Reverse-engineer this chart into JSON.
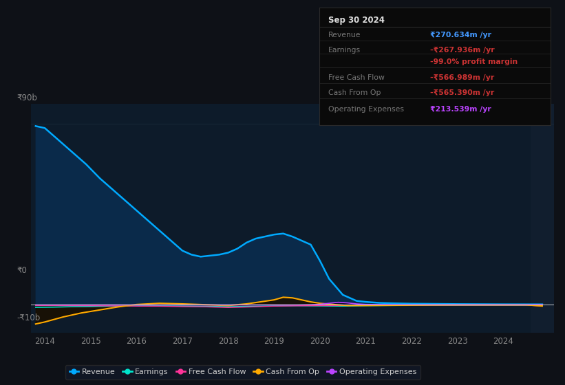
{
  "bg_color": "#0e1117",
  "plot_bg_color": "#0d1b2a",
  "grid_color": "#1e2d3d",
  "legend": [
    "Revenue",
    "Earnings",
    "Free Cash Flow",
    "Cash From Op",
    "Operating Expenses"
  ],
  "legend_colors": [
    "#00aaff",
    "#00e5cc",
    "#ff3399",
    "#ffaa00",
    "#bb44ff"
  ],
  "info_box": {
    "title": "Sep 30 2024",
    "rows": [
      {
        "label": "Revenue",
        "value": "₹270.634m /yr",
        "value_color": "#4499ff"
      },
      {
        "label": "Earnings",
        "value": "-₹267.936m /yr",
        "value_color": "#cc3333"
      },
      {
        "label": "",
        "value": "-99.0% profit margin",
        "value_color": "#cc3333"
      },
      {
        "label": "Free Cash Flow",
        "value": "-₹566.989m /yr",
        "value_color": "#cc3333"
      },
      {
        "label": "Cash From Op",
        "value": "-₹565.390m /yr",
        "value_color": "#cc3333"
      },
      {
        "label": "Operating Expenses",
        "value": "₹213.539m /yr",
        "value_color": "#bb44ff"
      }
    ]
  },
  "xmin": 2013.7,
  "xmax": 2025.1,
  "ymin": -14000000000,
  "ymax": 100000000000,
  "revenue_x": [
    2013.8,
    2014.0,
    2014.3,
    2014.6,
    2014.9,
    2015.2,
    2015.5,
    2015.8,
    2016.1,
    2016.4,
    2016.7,
    2017.0,
    2017.2,
    2017.4,
    2017.6,
    2017.8,
    2018.0,
    2018.2,
    2018.4,
    2018.6,
    2018.8,
    2019.0,
    2019.2,
    2019.4,
    2019.6,
    2019.8,
    2020.0,
    2020.2,
    2020.5,
    2020.8,
    2021.0,
    2021.3,
    2021.6,
    2022.0,
    2022.5,
    2023.0,
    2023.5,
    2024.0,
    2024.5,
    2024.85
  ],
  "revenue_y": [
    89000000000.0,
    88000000000.0,
    82000000000.0,
    76000000000.0,
    70000000000.0,
    63000000000.0,
    57000000000.0,
    51000000000.0,
    45000000000.0,
    39000000000.0,
    33000000000.0,
    27000000000.0,
    25000000000.0,
    24000000000.0,
    24500000000.0,
    25000000000.0,
    26000000000.0,
    28000000000.0,
    31000000000.0,
    33000000000.0,
    34000000000.0,
    35000000000.0,
    35500000000.0,
    34000000000.0,
    32000000000.0,
    30000000000.0,
    22000000000.0,
    13000000000.0,
    5000000000.0,
    2000000000.0,
    1500000000.0,
    1000000000.0,
    800000000.0,
    600000000.0,
    500000000.0,
    400000000.0,
    350000000.0,
    300000000.0,
    280000000.0,
    270000000.0
  ],
  "revenue_color": "#00aaff",
  "revenue_fill": "#0a2a4a",
  "earnings_x": [
    2013.8,
    2014.2,
    2014.6,
    2015.0,
    2015.5,
    2016.0,
    2016.5,
    2017.0,
    2017.5,
    2018.0,
    2018.5,
    2019.0,
    2019.5,
    2020.0,
    2020.5,
    2021.0,
    2021.5,
    2022.0,
    2022.5,
    2023.0,
    2023.5,
    2024.0,
    2024.5,
    2024.85
  ],
  "earnings_y": [
    -1200000000.0,
    -1100000000.0,
    -900000000.0,
    -800000000.0,
    -600000000.0,
    -500000000.0,
    -500000000.0,
    -600000000.0,
    -700000000.0,
    -900000000.0,
    -700000000.0,
    -500000000.0,
    -400000000.0,
    -500000000.0,
    -600000000.0,
    -400000000.0,
    -300000000.0,
    -250000000.0,
    -250000000.0,
    -250000000.0,
    -250000000.0,
    -250000000.0,
    -260000000.0,
    -270000000.0
  ],
  "earnings_color": "#00e5cc",
  "fcf_x": [
    2013.8,
    2014.2,
    2014.6,
    2015.0,
    2015.5,
    2016.0,
    2016.5,
    2017.0,
    2017.5,
    2018.0,
    2018.5,
    2019.0,
    2019.5,
    2020.0,
    2020.5,
    2021.0,
    2021.5,
    2022.0,
    2022.5,
    2023.0,
    2023.5,
    2024.0,
    2024.5,
    2024.85
  ],
  "fcf_y": [
    -300000000.0,
    -300000000.0,
    -350000000.0,
    -400000000.0,
    -500000000.0,
    -600000000.0,
    -650000000.0,
    -850000000.0,
    -950000000.0,
    -1300000000.0,
    -1000000000.0,
    -600000000.0,
    -450000000.0,
    -350000000.0,
    -300000000.0,
    -220000000.0,
    -180000000.0,
    -150000000.0,
    -150000000.0,
    -140000000.0,
    -140000000.0,
    -140000000.0,
    -140000000.0,
    -570000000.0
  ],
  "fcf_color": "#ff3399",
  "cfo_x": [
    2013.8,
    2014.0,
    2014.4,
    2014.8,
    2015.2,
    2015.6,
    2016.0,
    2016.5,
    2017.0,
    2017.5,
    2018.0,
    2018.4,
    2018.7,
    2019.0,
    2019.2,
    2019.4,
    2019.6,
    2019.8,
    2020.0,
    2020.3,
    2020.6,
    2021.0,
    2021.5,
    2022.0,
    2022.5,
    2023.0,
    2023.5,
    2024.0,
    2024.5,
    2024.85
  ],
  "cfo_y": [
    -9500000000.0,
    -8500000000.0,
    -6000000000.0,
    -4000000000.0,
    -2500000000.0,
    -1000000000.0,
    200000000.0,
    800000000.0,
    500000000.0,
    100000000.0,
    -300000000.0,
    500000000.0,
    1500000000.0,
    2500000000.0,
    3800000000.0,
    3500000000.0,
    2500000000.0,
    1500000000.0,
    800000000.0,
    200000000.0,
    -300000000.0,
    -300000000.0,
    -200000000.0,
    -100000000.0,
    0.0,
    50000000.0,
    50000000.0,
    50000000.0,
    50000000.0,
    -570000000.0
  ],
  "cfo_color": "#ffaa00",
  "ope_x": [
    2013.8,
    2014.0,
    2015.0,
    2016.0,
    2017.0,
    2018.0,
    2019.0,
    2019.5,
    2019.8,
    2020.0,
    2020.2,
    2020.4,
    2020.6,
    2020.8,
    2021.0,
    2021.5,
    2022.0,
    2022.5,
    2023.0,
    2023.5,
    2024.0,
    2024.5,
    2024.85
  ],
  "ope_y": [
    0,
    0,
    0,
    0,
    0,
    0,
    0,
    0,
    100000000.0,
    300000000.0,
    800000000.0,
    1300000000.0,
    1000000000.0,
    500000000.0,
    250000000.0,
    150000000.0,
    100000000.0,
    100000000.0,
    100000000.0,
    100000000.0,
    100000000.0,
    100000000.0,
    210000000.0
  ],
  "ope_color": "#bb44ff",
  "highlight_start": 2024.6,
  "highlight_color": "#111e2e",
  "ytick_90b_label": "₹90b",
  "ytick_0_label": "₹0",
  "ytick_neg10b_label": "-₹10b",
  "xticks": [
    2014,
    2015,
    2016,
    2017,
    2018,
    2019,
    2020,
    2021,
    2022,
    2023,
    2024
  ],
  "zero_line_color": "#cccccc"
}
